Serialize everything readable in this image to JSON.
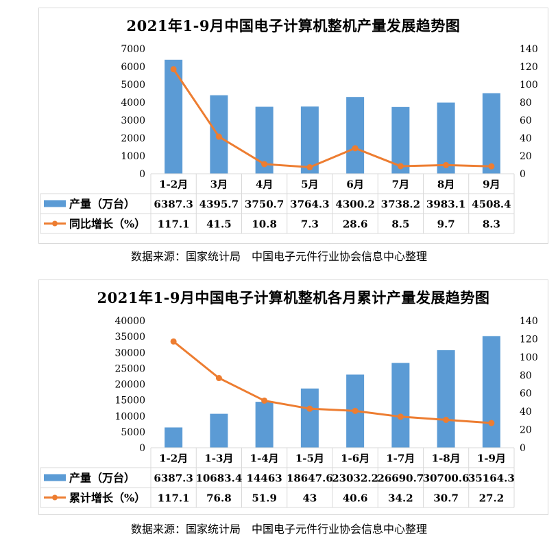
{
  "chart_data": [
    {
      "type": "bar",
      "title": "2021年1-9月中国电子计算机整机产量发展趋势图",
      "categories": [
        "1-2月",
        "3月",
        "4月",
        "5月",
        "6月",
        "7月",
        "8月",
        "9月"
      ],
      "series": [
        {
          "name": "产量（万台）",
          "type": "bar",
          "axis": "left",
          "color": "#5b9bd5",
          "values": [
            6387.3,
            4395.7,
            3750.7,
            3764.3,
            4300.2,
            3738.2,
            3983.1,
            4508.4
          ],
          "labels": [
            "6387.3",
            "4395.7",
            "3750.7",
            "3764.3",
            "4300.2",
            "3738.2",
            "3983.1",
            "4508.4"
          ]
        },
        {
          "name": "同比增长（%）",
          "type": "line",
          "axis": "right",
          "color": "#ed7d31",
          "values": [
            117.1,
            41.5,
            10.8,
            7.3,
            28.6,
            8.5,
            9.7,
            8.3
          ],
          "labels": [
            "117.1",
            "41.5",
            "10.8",
            "7.3",
            "28.6",
            "8.5",
            "9.7",
            "8.3"
          ]
        }
      ],
      "ylim_left": [
        0,
        7000
      ],
      "yticks_left": [
        "0",
        "1000",
        "2000",
        "3000",
        "4000",
        "5000",
        "6000",
        "7000"
      ],
      "ylim_right": [
        0,
        140
      ],
      "yticks_right": [
        "0",
        "20",
        "40",
        "60",
        "80",
        "100",
        "120",
        "140"
      ],
      "grid": false,
      "data_table": true
    },
    {
      "type": "bar",
      "title": "2021年1-9月中国电子计算机整机各月累计产量发展趋势图",
      "categories": [
        "1-2月",
        "1-3月",
        "1-4月",
        "1-5月",
        "1-6月",
        "1-7月",
        "1-8月",
        "1-9月"
      ],
      "series": [
        {
          "name": "产量（万台）",
          "type": "bar",
          "axis": "left",
          "color": "#5b9bd5",
          "values": [
            6387.3,
            10683.4,
            14463,
            18647.6,
            23032.2,
            26690.7,
            30700.6,
            35164.3
          ],
          "labels": [
            "6387.3",
            "10683.4",
            "14463",
            "18647.6",
            "23032.2",
            "26690.7",
            "30700.6",
            "35164.3"
          ]
        },
        {
          "name": "累计增长（%）",
          "type": "line",
          "axis": "right",
          "color": "#ed7d31",
          "values": [
            117.1,
            76.8,
            51.9,
            43,
            40.6,
            34.2,
            30.7,
            27.2
          ],
          "labels": [
            "117.1",
            "76.8",
            "51.9",
            "43",
            "40.6",
            "34.2",
            "30.7",
            "27.2"
          ]
        }
      ],
      "ylim_left": [
        0,
        40000
      ],
      "yticks_left": [
        "0",
        "5000",
        "10000",
        "15000",
        "20000",
        "25000",
        "30000",
        "35000",
        "40000"
      ],
      "ylim_right": [
        0,
        140
      ],
      "yticks_right": [
        "0",
        "20",
        "40",
        "60",
        "80",
        "100",
        "120",
        "140"
      ],
      "grid": false,
      "data_table": true
    }
  ],
  "sources": [
    "数据来源：国家统计局　中国电子元件行业协会信息中心整理",
    "数据来源：国家统计局　中国电子元件行业协会信息中心整理"
  ],
  "watermark": "中国电子元件行业协会"
}
